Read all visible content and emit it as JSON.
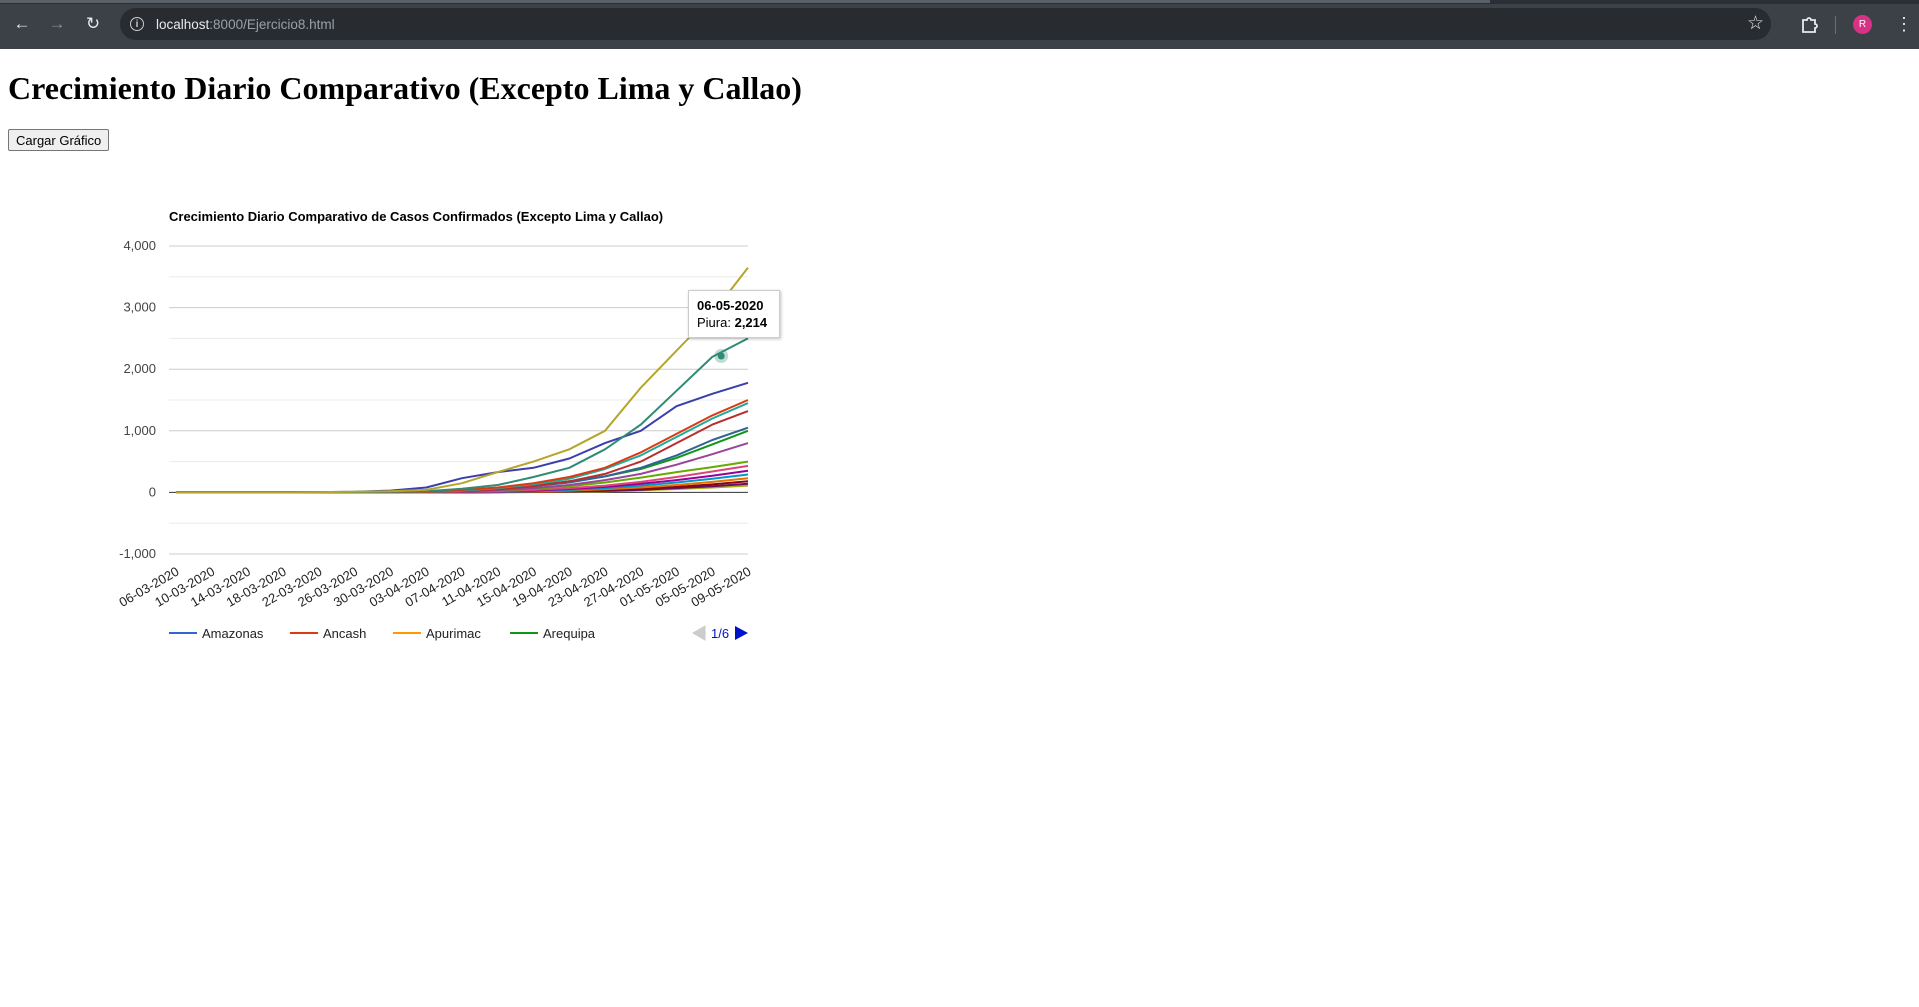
{
  "browser": {
    "url_host": "localhost",
    "url_path": ":8000/Ejercicio8.html",
    "avatar_letter": "R"
  },
  "page": {
    "title": "Crecimiento Diario Comparativo (Excepto Lima y Callao)",
    "load_button": "Cargar Gráfico"
  },
  "chart_data": {
    "type": "line",
    "title": "Crecimiento Diario Comparativo de Casos Confirmados (Excepto Lima y Callao)",
    "xlabel": "",
    "ylabel": "",
    "ylim": [
      -1000,
      4000
    ],
    "yticks": [
      -1000,
      0,
      1000,
      2000,
      3000,
      4000
    ],
    "ytick_labels": [
      "-1,000",
      "0",
      "1,000",
      "2,000",
      "3,000",
      "4,000"
    ],
    "xtick_labels": [
      "06-03-2020",
      "10-03-2020",
      "14-03-2020",
      "18-03-2020",
      "22-03-2020",
      "26-03-2020",
      "30-03-2020",
      "03-04-2020",
      "07-04-2020",
      "11-04-2020",
      "15-04-2020",
      "19-04-2020",
      "23-04-2020",
      "27-04-2020",
      "01-05-2020",
      "05-05-2020",
      "09-05-2020"
    ],
    "grid": true,
    "legend": {
      "position": "bottom",
      "visible_entries": [
        {
          "name": "Amazonas",
          "color": "#3366cc"
        },
        {
          "name": "Ancash",
          "color": "#dc3912"
        },
        {
          "name": "Apurimac",
          "color": "#ff9900"
        },
        {
          "name": "Arequipa",
          "color": "#109618"
        }
      ],
      "page_label": "1/6"
    },
    "x_dates": [
      "06-03",
      "10-03",
      "14-03",
      "18-03",
      "22-03",
      "26-03",
      "30-03",
      "03-04",
      "07-04",
      "11-04",
      "15-04",
      "19-04",
      "23-04",
      "27-04",
      "01-05",
      "05-05",
      "09-05"
    ],
    "series": [
      {
        "color": "#b5a52a",
        "values": [
          0,
          0,
          0,
          0,
          5,
          10,
          20,
          40,
          150,
          330,
          500,
          700,
          1000,
          1700,
          2300,
          2900,
          3650
        ]
      },
      {
        "color": "#2e8b75",
        "values": [
          0,
          0,
          0,
          0,
          0,
          5,
          10,
          20,
          60,
          120,
          250,
          400,
          700,
          1100,
          1650,
          2200,
          2500
        ]
      },
      {
        "color": "#3b3eac",
        "values": [
          0,
          0,
          0,
          0,
          5,
          10,
          30,
          80,
          230,
          330,
          400,
          550,
          800,
          1000,
          1400,
          1600,
          1780
        ]
      },
      {
        "color": "#dc3912",
        "values": [
          0,
          0,
          0,
          0,
          0,
          0,
          5,
          10,
          40,
          80,
          150,
          250,
          400,
          650,
          950,
          1250,
          1500
        ]
      },
      {
        "color": "#22aa99",
        "values": [
          0,
          0,
          0,
          0,
          0,
          0,
          5,
          10,
          30,
          70,
          130,
          220,
          380,
          600,
          900,
          1200,
          1450
        ]
      },
      {
        "color": "#b82e2e",
        "values": [
          0,
          0,
          0,
          0,
          0,
          0,
          5,
          10,
          20,
          50,
          100,
          180,
          300,
          500,
          800,
          1100,
          1320
        ]
      },
      {
        "color": "#316395",
        "values": [
          0,
          0,
          0,
          0,
          0,
          0,
          5,
          10,
          30,
          60,
          100,
          160,
          260,
          400,
          600,
          850,
          1050
        ]
      },
      {
        "color": "#109618",
        "values": [
          0,
          0,
          0,
          0,
          0,
          0,
          5,
          10,
          25,
          60,
          110,
          180,
          260,
          380,
          560,
          780,
          1000
        ]
      },
      {
        "color": "#994499",
        "values": [
          0,
          0,
          0,
          0,
          0,
          0,
          0,
          5,
          15,
          35,
          70,
          120,
          200,
          300,
          450,
          620,
          800
        ]
      },
      {
        "color": "#66aa00",
        "values": [
          0,
          0,
          0,
          0,
          0,
          0,
          0,
          5,
          15,
          30,
          60,
          100,
          160,
          240,
          330,
          410,
          500
        ]
      },
      {
        "color": "#dd4477",
        "values": [
          0,
          0,
          0,
          0,
          0,
          0,
          0,
          0,
          10,
          20,
          40,
          70,
          110,
          170,
          250,
          340,
          430
        ]
      },
      {
        "color": "#990099",
        "values": [
          0,
          0,
          0,
          0,
          0,
          0,
          0,
          0,
          5,
          15,
          30,
          55,
          90,
          140,
          200,
          270,
          350
        ]
      },
      {
        "color": "#0099c6",
        "values": [
          0,
          0,
          0,
          0,
          0,
          0,
          0,
          0,
          5,
          10,
          20,
          40,
          70,
          110,
          160,
          220,
          290
        ]
      },
      {
        "color": "#e67300",
        "values": [
          0,
          0,
          0,
          0,
          0,
          0,
          0,
          0,
          5,
          10,
          15,
          30,
          50,
          80,
          120,
          170,
          230
        ]
      },
      {
        "color": "#8b0707",
        "values": [
          0,
          0,
          0,
          0,
          0,
          0,
          0,
          0,
          0,
          5,
          10,
          20,
          40,
          60,
          90,
          130,
          180
        ]
      },
      {
        "color": "#651067",
        "values": [
          0,
          0,
          0,
          0,
          0,
          0,
          0,
          0,
          0,
          5,
          10,
          15,
          25,
          40,
          70,
          100,
          140
        ]
      },
      {
        "color": "#aaaa11",
        "values": [
          0,
          0,
          0,
          0,
          0,
          0,
          0,
          0,
          0,
          0,
          5,
          10,
          20,
          35,
          55,
          80,
          110
        ]
      }
    ],
    "tooltip": {
      "date": "06-05-2020",
      "series_label": "Piura:",
      "value_label": "2,214",
      "value": 2214,
      "x_index": 15.25,
      "color": "#2e8b75"
    }
  }
}
